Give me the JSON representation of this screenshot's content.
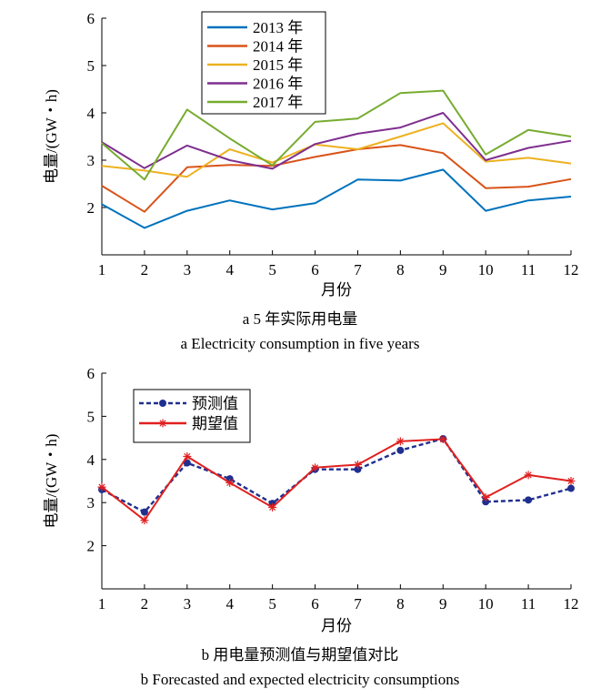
{
  "chart_data": [
    {
      "type": "line",
      "caption_cn": "a 5 年实际用电量",
      "caption_en": "a Electricity consumption in five years",
      "xlabel": "月份",
      "ylabel": "电量/(GW・h)",
      "x": [
        1,
        2,
        3,
        4,
        5,
        6,
        7,
        8,
        9,
        10,
        11,
        12
      ],
      "xlim": [
        1,
        12
      ],
      "ylim": [
        1,
        6
      ],
      "yticks": [
        2,
        3,
        4,
        5,
        6
      ],
      "grid": false,
      "legend_position": "top-left",
      "series": [
        {
          "name": "2013 年",
          "color": "#0072BD",
          "marker": "none",
          "dashed": false,
          "values": [
            2.07,
            1.57,
            1.93,
            2.15,
            1.96,
            2.09,
            2.59,
            2.57,
            2.8,
            1.93,
            2.15,
            2.23
          ]
        },
        {
          "name": "2014 年",
          "color": "#D95319",
          "marker": "none",
          "dashed": false,
          "values": [
            2.46,
            1.91,
            2.85,
            2.9,
            2.88,
            3.07,
            3.23,
            3.32,
            3.15,
            2.41,
            2.44,
            2.6
          ]
        },
        {
          "name": "2015 年",
          "color": "#EDB120",
          "marker": "none",
          "dashed": false,
          "values": [
            2.88,
            2.78,
            2.65,
            3.23,
            2.95,
            3.33,
            3.23,
            3.5,
            3.78,
            2.97,
            3.05,
            2.93
          ]
        },
        {
          "name": "2016 年",
          "color": "#7E2F8E",
          "marker": "none",
          "dashed": false,
          "values": [
            3.38,
            2.83,
            3.31,
            3.0,
            2.82,
            3.34,
            3.56,
            3.69,
            4.0,
            3.0,
            3.26,
            3.41
          ]
        },
        {
          "name": "2017 年",
          "color": "#77AC30",
          "marker": "none",
          "dashed": false,
          "values": [
            3.36,
            2.59,
            4.07,
            3.46,
            2.89,
            3.81,
            3.88,
            4.42,
            4.47,
            3.12,
            3.64,
            3.5
          ]
        }
      ]
    },
    {
      "type": "line",
      "caption_cn": "b 用电量预测值与期望值对比",
      "caption_en": "b Forecasted and expected electricity consumptions",
      "xlabel": "月份",
      "ylabel": "电量/(GW・h)",
      "x": [
        1,
        2,
        3,
        4,
        5,
        6,
        7,
        8,
        9,
        10,
        11,
        12
      ],
      "xlim": [
        1,
        12
      ],
      "ylim": [
        1,
        6
      ],
      "yticks": [
        2,
        3,
        4,
        5,
        6
      ],
      "grid": false,
      "legend_position": "top-left",
      "series": [
        {
          "name": "预测值",
          "color": "#1F2F8F",
          "marker": "dot",
          "dashed": true,
          "values": [
            3.3,
            2.78,
            3.92,
            3.55,
            2.98,
            3.77,
            3.77,
            4.21,
            4.48,
            3.02,
            3.06,
            3.33
          ]
        },
        {
          "name": "期望值",
          "color": "#E02020",
          "marker": "star",
          "dashed": false,
          "values": [
            3.36,
            2.59,
            4.07,
            3.46,
            2.89,
            3.81,
            3.88,
            4.42,
            4.47,
            3.12,
            3.64,
            3.5
          ]
        }
      ]
    }
  ]
}
